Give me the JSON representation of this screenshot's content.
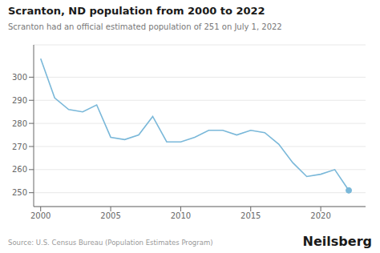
{
  "chart_data": {
    "type": "line",
    "title": "Scranton, ND population from 2000 to 2022",
    "subtitle": "Scranton had an official estimated population of 251 on July 1, 2022",
    "annotations": [
      "Source: U.S. Census Bureau (Population Estimates Program)",
      "Neilsberg"
    ],
    "x": [
      2000,
      2001,
      2002,
      2003,
      2004,
      2005,
      2006,
      2007,
      2008,
      2009,
      2010,
      2011,
      2012,
      2013,
      2014,
      2015,
      2016,
      2017,
      2018,
      2019,
      2020,
      2021,
      2022
    ],
    "values": [
      308,
      291,
      286,
      285,
      288,
      274,
      273,
      275,
      283,
      272,
      272,
      274,
      277,
      277,
      275,
      277,
      276,
      271,
      263,
      257,
      258,
      260,
      251
    ],
    "color": "#7ab8d9",
    "marker": "circle",
    "xlim": [
      1999.5,
      2023.2
    ],
    "xticks": [
      2000,
      2005,
      2010,
      2015,
      2020
    ],
    "ylim": [
      244,
      314
    ],
    "yticks": [
      250,
      260,
      270,
      280,
      290,
      300
    ],
    "grid": true
  }
}
